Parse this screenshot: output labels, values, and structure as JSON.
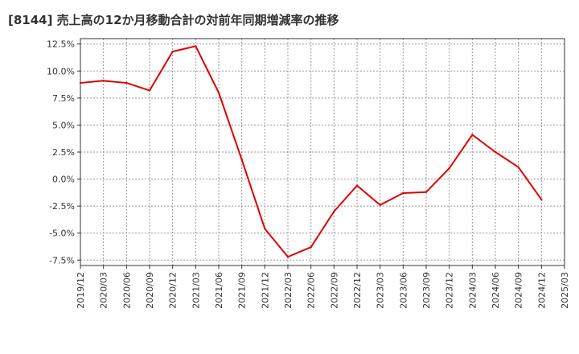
{
  "chart_data": {
    "type": "line",
    "title": "[8144]  売上高の12か月移動合計の対前年同期増減率の推移",
    "xlabel": "",
    "ylabel": "",
    "ylim": [
      -8.0,
      13.0
    ],
    "yticks": [
      12.5,
      10.0,
      7.5,
      5.0,
      2.5,
      0.0,
      -2.5,
      -5.0,
      -7.5
    ],
    "ytick_labels": [
      "12.5%",
      "10.0%",
      "7.5%",
      "5.0%",
      "2.5%",
      "0.0%",
      "-2.5%",
      "-5.0%",
      "-7.5%"
    ],
    "x_categories": [
      "2019/12",
      "2020/03",
      "2020/06",
      "2020/09",
      "2020/12",
      "2021/03",
      "2021/06",
      "2021/09",
      "2021/12",
      "2022/03",
      "2022/06",
      "2022/09",
      "2022/12",
      "2023/03",
      "2023/06",
      "2023/09",
      "2023/12",
      "2024/03",
      "2024/06",
      "2024/09",
      "2024/12",
      "2025/03"
    ],
    "grid": true,
    "series": [
      {
        "name": "増減率",
        "color": "#e00000",
        "values": [
          8.9,
          9.1,
          8.9,
          8.2,
          11.8,
          12.3,
          8.0,
          1.8,
          -4.6,
          -7.2,
          -6.3,
          -3.0,
          -0.6,
          -2.4,
          -1.3,
          -1.2,
          1.0,
          4.1,
          2.5,
          1.1,
          -1.9,
          null
        ]
      }
    ]
  }
}
